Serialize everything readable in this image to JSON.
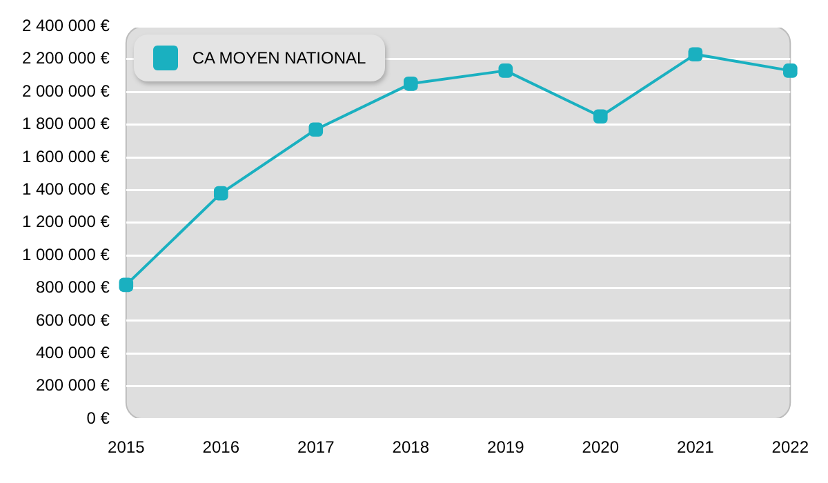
{
  "chart_data": {
    "type": "line",
    "x": [
      2015,
      2016,
      2017,
      2018,
      2019,
      2020,
      2021,
      2022
    ],
    "series": [
      {
        "name": "CA MOYEN NATIONAL",
        "color": "#1ab0c0",
        "values": [
          820000,
          1380000,
          1770000,
          2050000,
          2130000,
          1850000,
          2230000,
          2130000
        ]
      }
    ],
    "xlim": [
      2015,
      2022
    ],
    "xticks": [
      2015,
      2016,
      2017,
      2018,
      2019,
      2020,
      2021,
      2022
    ],
    "ylim": [
      0,
      2400000
    ],
    "yticks": [
      {
        "value": 0,
        "label": "0 €"
      },
      {
        "value": 200000,
        "label": "200 000 €"
      },
      {
        "value": 400000,
        "label": "400 000 €"
      },
      {
        "value": 600000,
        "label": "600 000 €"
      },
      {
        "value": 800000,
        "label": "800 000 €"
      },
      {
        "value": 1000000,
        "label": "1 000 000 €"
      },
      {
        "value": 1200000,
        "label": "1 200 000 €"
      },
      {
        "value": 1400000,
        "label": "1 400 000 €"
      },
      {
        "value": 1600000,
        "label": "1 600 000 €"
      },
      {
        "value": 1800000,
        "label": "1 800 000 €"
      },
      {
        "value": 2000000,
        "label": "2 000 000 €"
      },
      {
        "value": 2200000,
        "label": "2 200 000 €"
      },
      {
        "value": 2400000,
        "label": "2 400 000 €"
      }
    ],
    "grid": "y",
    "legend": "top left",
    "marker": "square",
    "line_style": "solid"
  }
}
